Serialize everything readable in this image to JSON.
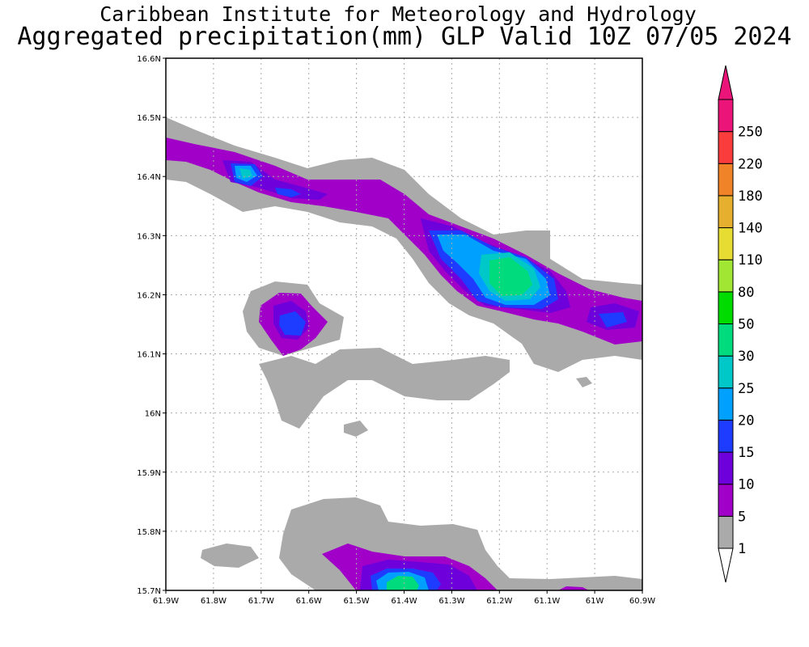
{
  "header": {
    "line1": "Caribbean Institute for Meteorology and Hydrology",
    "line2": "Aggregated precipitation(mm) GLP Valid 10Z 07/05 2024"
  },
  "map": {
    "lon_range": [
      -61.9,
      -60.9
    ],
    "lat_range": [
      15.7,
      16.6
    ],
    "grid": true,
    "x_ticks": [
      "61.9W",
      "61.8W",
      "61.7W",
      "61.6W",
      "61.5W",
      "61.4W",
      "61.3W",
      "61.2W",
      "61.1W",
      "61W",
      "60.9W"
    ],
    "y_ticks": [
      "16.6N",
      "16.5N",
      "16.4N",
      "16.3N",
      "16.2N",
      "16.1N",
      "16N",
      "15.9N",
      "15.8N",
      "15.7N"
    ]
  },
  "colorbar": {
    "levels": [
      "1",
      "5",
      "10",
      "15",
      "20",
      "25",
      "30",
      "50",
      "80",
      "110",
      "140",
      "180",
      "220",
      "250"
    ],
    "colors": [
      "#aaaaaa",
      "#a000c8",
      "#6e00dc",
      "#1e3cff",
      "#00a0ff",
      "#00c8c8",
      "#00dc7d",
      "#00dc00",
      "#a0e632",
      "#e6dc32",
      "#e6af2d",
      "#f08228",
      "#fa3c3c",
      "#eb1478"
    ],
    "below_color": "#ffffff",
    "above_color": "#eb1478"
  }
}
